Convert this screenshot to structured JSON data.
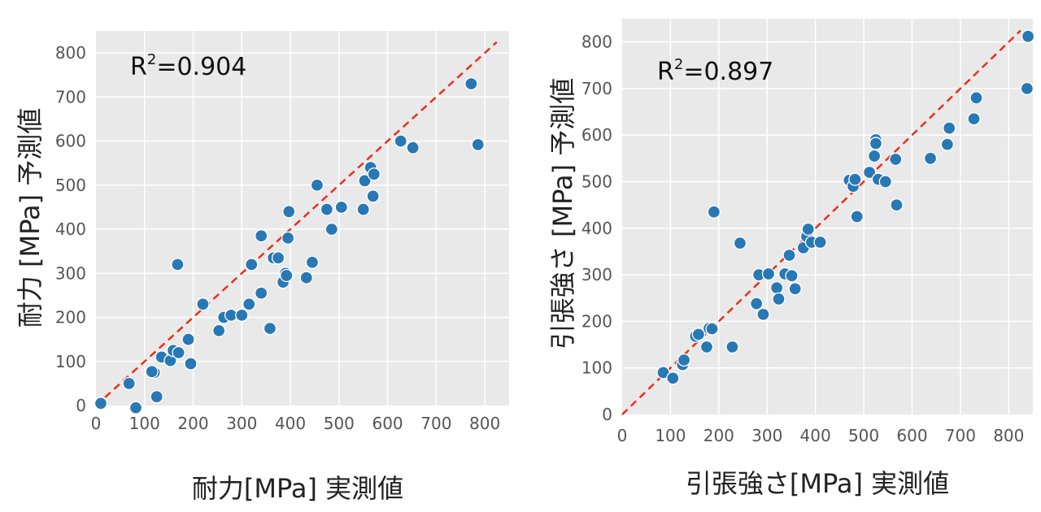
{
  "chart_data": [
    {
      "type": "scatter",
      "title": "",
      "xlabel": "耐力[MPa] 実測値",
      "ylabel": "耐力 [MPa] 予測値",
      "annotation": {
        "prefix": "R",
        "sup": "2",
        "text": "=0.904"
      },
      "xlim": [
        0,
        850
      ],
      "ylim": [
        0,
        850
      ],
      "xticks": [
        0,
        100,
        200,
        300,
        400,
        500,
        600,
        700,
        800
      ],
      "yticks": [
        0,
        100,
        200,
        300,
        400,
        500,
        600,
        700,
        800
      ],
      "grid": true,
      "point_color": "#2878b5",
      "fit_line_color": "#e8301c",
      "x": [
        10,
        68,
        82,
        120,
        115,
        125,
        135,
        153,
        159,
        170,
        168,
        190,
        195,
        220,
        253,
        263,
        278,
        300,
        315,
        320,
        340,
        340,
        358,
        365,
        375,
        385,
        390,
        392,
        397,
        395,
        433,
        445,
        455,
        475,
        485,
        505,
        550,
        553,
        565,
        570,
        572,
        627,
        652,
        772,
        786
      ],
      "y": [
        5,
        50,
        -5,
        75,
        77,
        20,
        110,
        102,
        125,
        120,
        320,
        150,
        95,
        230,
        170,
        200,
        205,
        205,
        230,
        320,
        255,
        385,
        175,
        335,
        335,
        280,
        300,
        295,
        440,
        380,
        290,
        325,
        500,
        445,
        400,
        450,
        445,
        510,
        540,
        475,
        525,
        600,
        585,
        730,
        592
      ]
    },
    {
      "type": "scatter",
      "title": "",
      "xlabel": "引張強さ[MPa] 実測値",
      "ylabel": "引張強さ [MPa] 予測値",
      "annotation": {
        "prefix": "R",
        "sup": "2",
        "text": "=0.897"
      },
      "xlim": [
        0,
        850
      ],
      "ylim": [
        0,
        850
      ],
      "xticks": [
        0,
        100,
        200,
        300,
        400,
        500,
        600,
        700,
        800
      ],
      "yticks": [
        0,
        100,
        200,
        300,
        400,
        500,
        600,
        700,
        800
      ],
      "grid": true,
      "point_color": "#2878b5",
      "fit_line_color": "#e8301c",
      "x": [
        85,
        105,
        125,
        128,
        152,
        158,
        175,
        180,
        186,
        190,
        228,
        244,
        278,
        283,
        292,
        303,
        320,
        324,
        337,
        346,
        351,
        358,
        375,
        382,
        385,
        392,
        410,
        470,
        478,
        482,
        486,
        512,
        522,
        525,
        525,
        530,
        545,
        566,
        568,
        638,
        673,
        677,
        728,
        733,
        838,
        840
      ],
      "y": [
        90,
        78,
        107,
        117,
        168,
        172,
        145,
        185,
        184,
        435,
        145,
        368,
        238,
        300,
        215,
        302,
        272,
        248,
        302,
        342,
        298,
        270,
        358,
        382,
        398,
        370,
        370,
        503,
        490,
        505,
        425,
        520,
        555,
        590,
        582,
        505,
        500,
        548,
        450,
        550,
        580,
        615,
        635,
        680,
        700,
        812
      ]
    }
  ]
}
